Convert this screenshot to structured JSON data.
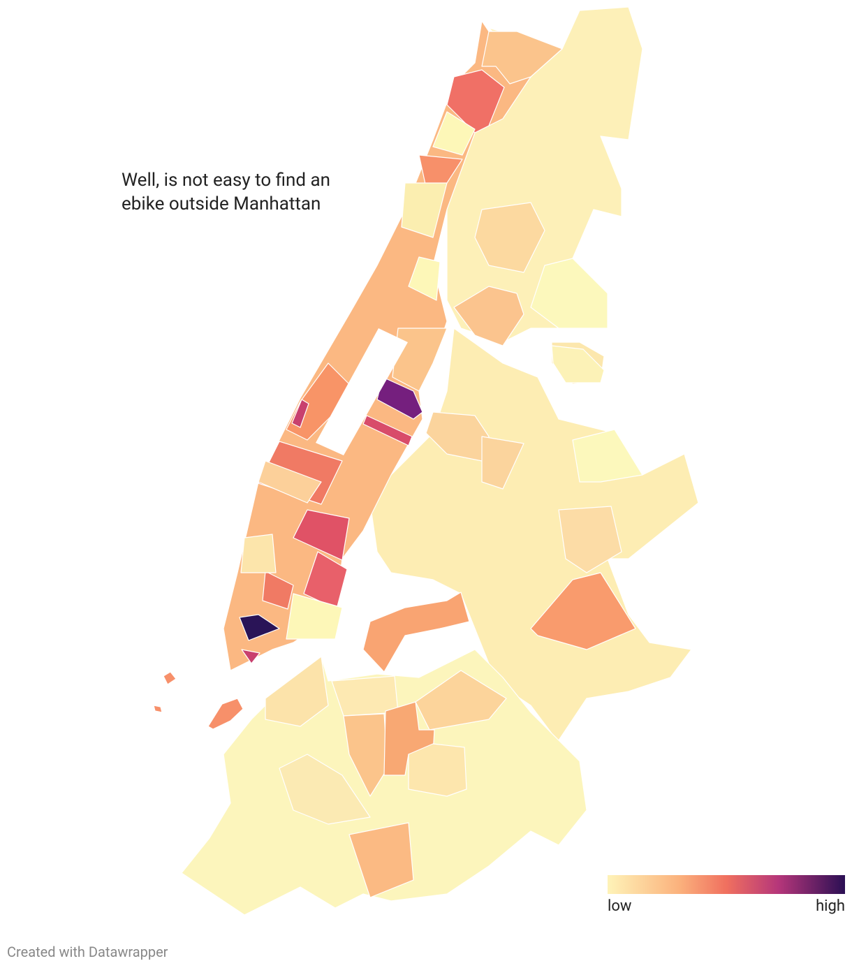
{
  "annotation": {
    "lines": [
      "Well, is not easy to find an",
      "ebike outside Manhattan"
    ]
  },
  "legend": {
    "low": "low",
    "high": "high"
  },
  "footer": "Created with Datawrapper"
}
